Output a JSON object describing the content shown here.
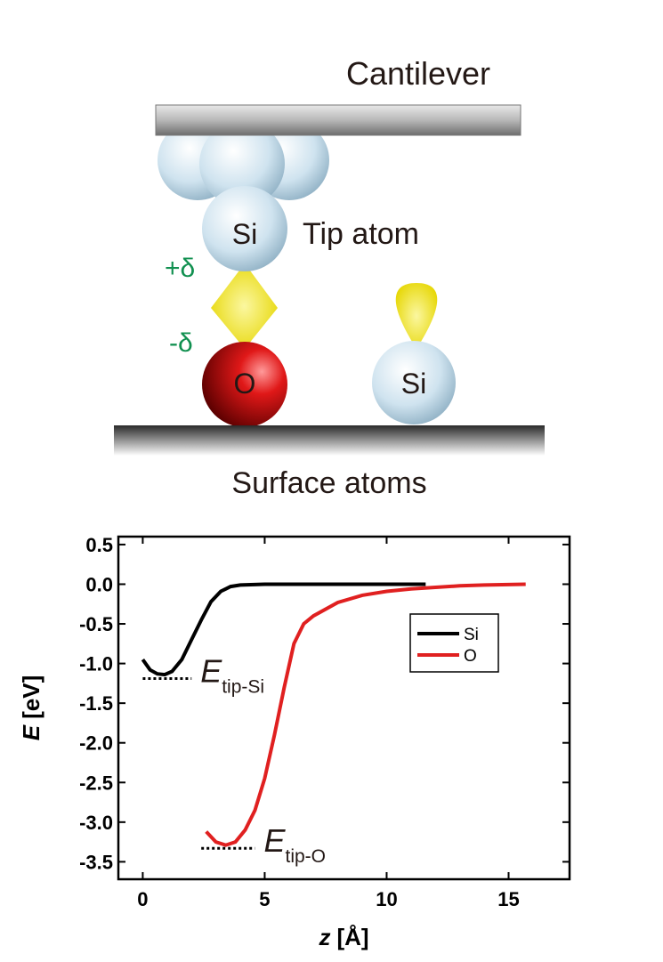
{
  "diagram": {
    "cantilever": "Cantilever",
    "tip_atom": "Tip atom",
    "tip_symbol": "Si",
    "plus_delta": "+δ",
    "minus_delta": "-δ",
    "surface_o": "O",
    "surface_si": "Si",
    "surface": "Surface atoms"
  },
  "chart_data": {
    "type": "line",
    "xlabel": {
      "symbol": "z",
      "unit": "[Å]"
    },
    "ylabel": {
      "symbol": "E",
      "unit": "[eV]"
    },
    "xlim": [
      -1,
      17.5
    ],
    "ylim": [
      -3.72,
      0.6
    ],
    "xticks": [
      0,
      5,
      10,
      15
    ],
    "yticks": [
      0.5,
      {
        "value": 0,
        "label": "0.0"
      },
      -0.5,
      {
        "value": -1,
        "label": "-1.0"
      },
      -1.5,
      {
        "value": -2,
        "label": "-2.0"
      },
      -2.5,
      {
        "value": -3,
        "label": "-3.0"
      },
      -3.5
    ],
    "legend": "right",
    "series": [
      {
        "name": "Si",
        "color": "#000000",
        "x": [
          0,
          0.3,
          0.6,
          0.9,
          1.2,
          1.6,
          2,
          2.4,
          2.8,
          3.2,
          3.6,
          4,
          5,
          7,
          9,
          11.6
        ],
        "values": [
          -0.95,
          -1.08,
          -1.13,
          -1.14,
          -1.1,
          -0.95,
          -0.7,
          -0.45,
          -0.22,
          -0.09,
          -0.03,
          -0.01,
          0,
          0,
          0,
          0
        ]
      },
      {
        "name": "O",
        "color": "#e02020",
        "x": [
          2.6,
          3,
          3.4,
          3.8,
          4.2,
          4.6,
          5,
          5.4,
          5.8,
          6.2,
          6.6,
          7,
          8,
          9,
          10,
          11,
          12,
          13,
          14,
          15.7
        ],
        "values": [
          -3.12,
          -3.25,
          -3.29,
          -3.25,
          -3.1,
          -2.85,
          -2.45,
          -1.9,
          -1.3,
          -0.75,
          -0.5,
          -0.4,
          -0.23,
          -0.14,
          -0.09,
          -0.06,
          -0.04,
          -0.02,
          -0.01,
          0
        ]
      }
    ],
    "annotations": [
      {
        "text": "E",
        "sub": "tip-Si",
        "value": -1.19,
        "xrange": [
          0,
          2
        ]
      },
      {
        "text": "E",
        "sub": "tip-O",
        "value": -3.33,
        "xrange": [
          2.4,
          4.6
        ]
      }
    ]
  }
}
